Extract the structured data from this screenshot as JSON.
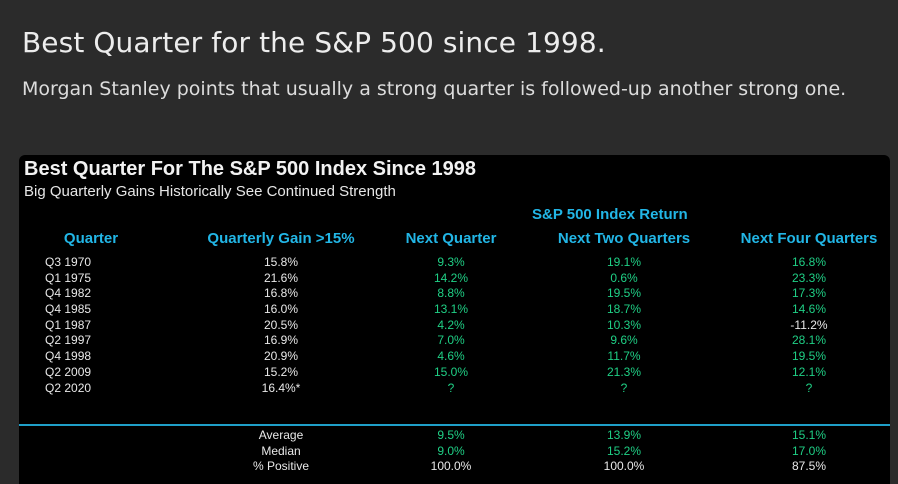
{
  "post": {
    "title": "Best Quarter for the S&P 500 since 1998.",
    "description": "Morgan Stanley points that usually a strong quarter is followed-up another strong one."
  },
  "table": {
    "title": "Best Quarter For The S&P 500 Index Since 1998",
    "subtitle": "Big Quarterly Gains Historically See Continued Strength",
    "group_header": "S&P 500 Index Return",
    "columns": {
      "quarter": "Quarter",
      "gain": "Quarterly Gain >15%",
      "next": "Next Quarter",
      "two": "Next Two Quarters",
      "four": "Next Four Quarters"
    },
    "rows": [
      {
        "quarter": "Q3 1970",
        "gain": "15.8%",
        "next": "9.3%",
        "two": "19.1%",
        "four": "16.8%"
      },
      {
        "quarter": "Q1 1975",
        "gain": "21.6%",
        "next": "14.2%",
        "two": "0.6%",
        "four": "23.3%"
      },
      {
        "quarter": "Q4 1982",
        "gain": "16.8%",
        "next": "8.8%",
        "two": "19.5%",
        "four": "17.3%"
      },
      {
        "quarter": "Q4 1985",
        "gain": "16.0%",
        "next": "13.1%",
        "two": "18.7%",
        "four": "14.6%"
      },
      {
        "quarter": "Q1 1987",
        "gain": "20.5%",
        "next": "4.2%",
        "two": "10.3%",
        "four": "-11.2%"
      },
      {
        "quarter": "Q2 1997",
        "gain": "16.9%",
        "next": "7.0%",
        "two": "9.6%",
        "four": "28.1%"
      },
      {
        "quarter": "Q4 1998",
        "gain": "20.9%",
        "next": "4.6%",
        "two": "11.7%",
        "four": "19.5%"
      },
      {
        "quarter": "Q2 2009",
        "gain": "15.2%",
        "next": "15.0%",
        "two": "21.3%",
        "four": "12.1%"
      },
      {
        "quarter": "Q2 2020",
        "gain": "16.4%*",
        "next": "?",
        "two": "?",
        "four": "?"
      }
    ],
    "summary": [
      {
        "label": "Average",
        "next": "9.5%",
        "two": "13.9%",
        "four": "15.1%"
      },
      {
        "label": "Median",
        "next": "9.0%",
        "two": "15.2%",
        "four": "17.0%"
      },
      {
        "label": "% Positive",
        "next": "100.0%",
        "two": "100.0%",
        "four": "87.5%"
      }
    ],
    "colors": {
      "header_blue": "#22b6e6",
      "value_green": "#1fcf85",
      "background": "#000000",
      "page_background": "#2b2b2b"
    }
  }
}
